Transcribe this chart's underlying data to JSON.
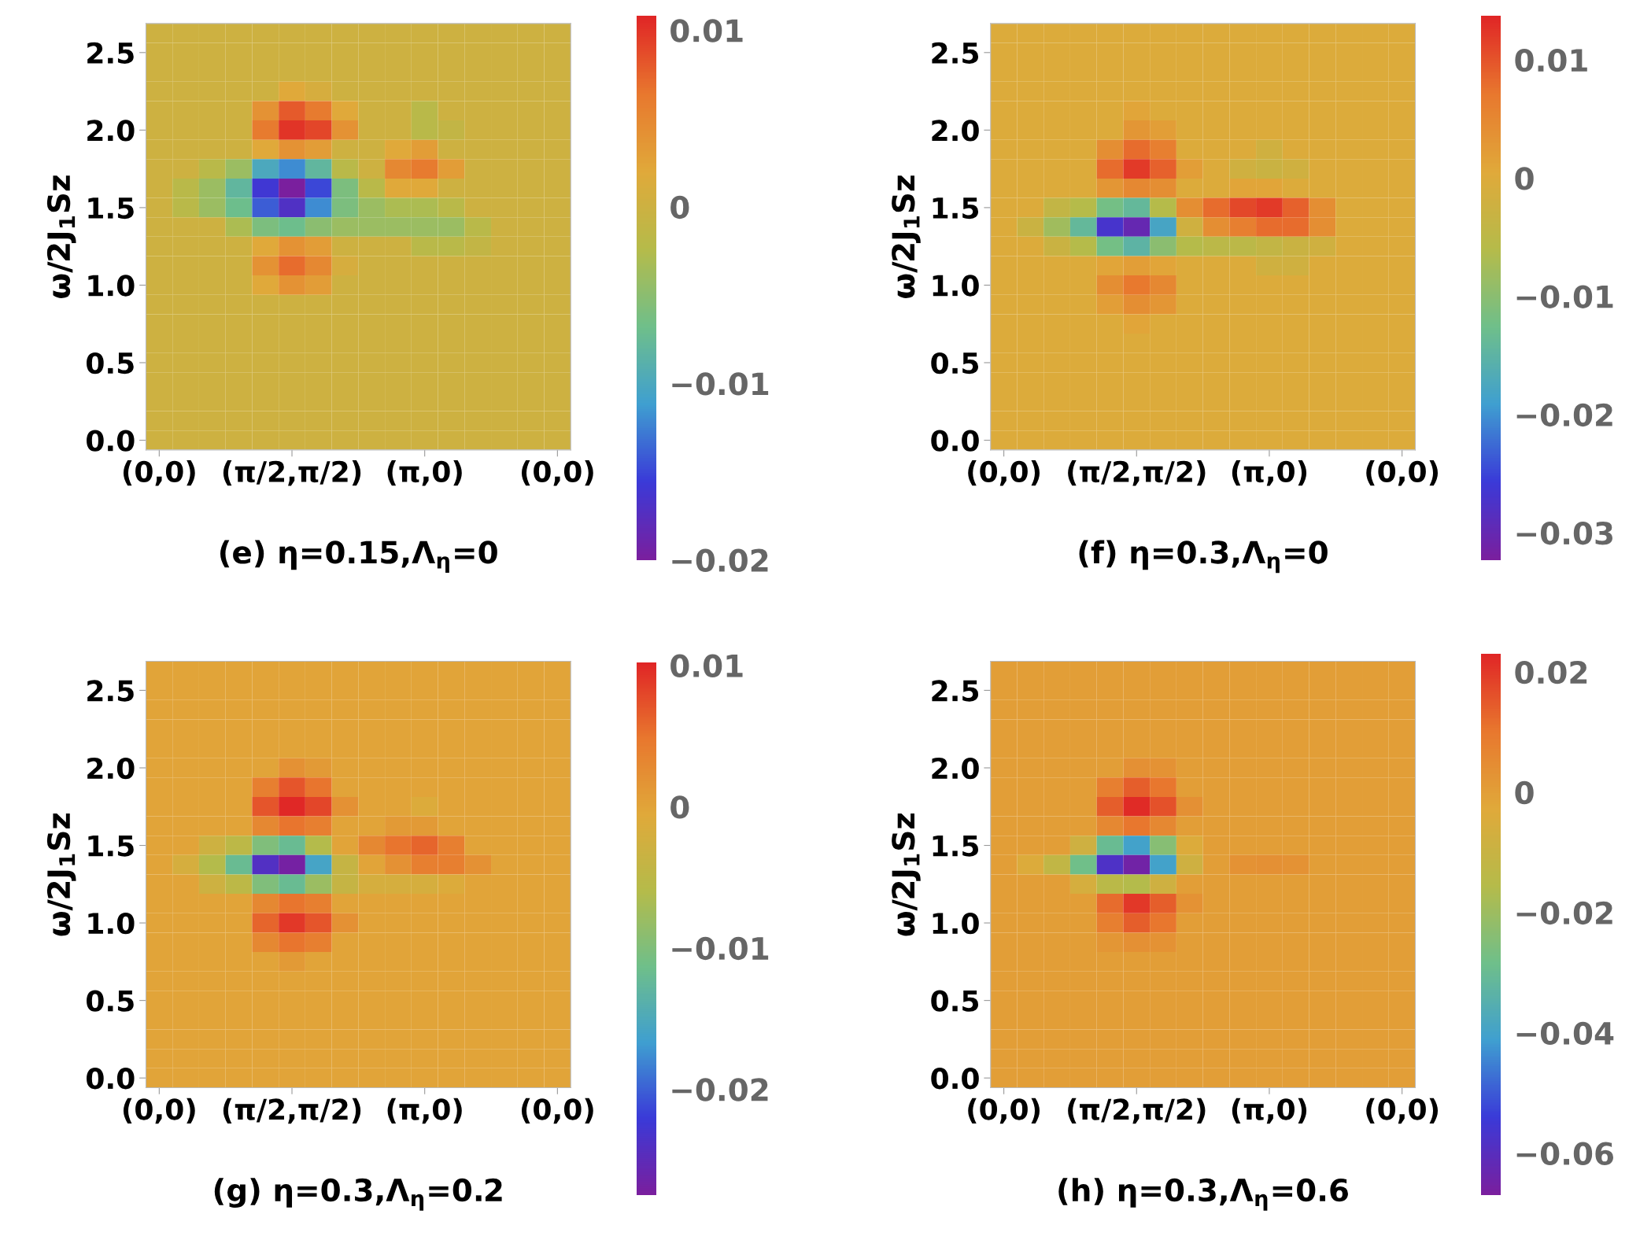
{
  "chart_data": [
    {
      "type": "heatmap",
      "title": "(e) η=0.15,Λ$_{η}$=0",
      "ylabel": "ω/2J$_{1}$Sz",
      "categories": [
        "(0,0)",
        null,
        null,
        null,
        null,
        "(π/2,π/2)",
        null,
        null,
        null,
        null,
        "(π,0)",
        null,
        null,
        null,
        null,
        "(0,0)"
      ],
      "y_categories": [
        null,
        "2.5",
        null,
        null,
        null,
        "2.0",
        null,
        null,
        null,
        "1.5",
        null,
        null,
        null,
        "1.0",
        null,
        null,
        null,
        "0.5",
        null,
        null,
        null,
        "0.0"
      ],
      "clim": [
        -0.02,
        0.0108
      ],
      "cticks": [
        0.01,
        0,
        {
          "value": -0.01,
          "label": "−0.01"
        },
        {
          "value": -0.02,
          "label": "−0.02"
        }
      ],
      "cells": [
        [
          0,
          0,
          0,
          0,
          0,
          0,
          0,
          0,
          0,
          0,
          0,
          0,
          0,
          0,
          0,
          0
        ],
        [
          0,
          0,
          0,
          0,
          0,
          0,
          0,
          0,
          0,
          0,
          0,
          0,
          0,
          0,
          0,
          0
        ],
        [
          0,
          0,
          0,
          0,
          0,
          0,
          0,
          0,
          0,
          0,
          0,
          0,
          0,
          0,
          0,
          0
        ],
        [
          0,
          0,
          0,
          0,
          0,
          0.002,
          0.001,
          0,
          0,
          0,
          0,
          0,
          0,
          0,
          0,
          0
        ],
        [
          0,
          0,
          0,
          0,
          0.004,
          0.008,
          0.006,
          0.002,
          0,
          0,
          -0.002,
          0,
          0,
          0,
          0,
          0
        ],
        [
          0,
          0,
          0,
          0,
          0.006,
          0.01,
          0.009,
          0.004,
          0,
          0,
          -0.002,
          -0.001,
          0,
          0,
          0,
          0
        ],
        [
          0,
          0,
          0,
          0,
          0.002,
          0.004,
          0.003,
          0,
          0,
          0.002,
          0.003,
          0,
          0,
          0,
          0,
          0
        ],
        [
          0,
          0,
          -0.002,
          -0.004,
          -0.01,
          -0.012,
          -0.008,
          -0.002,
          0,
          0.005,
          0.006,
          0.003,
          0,
          0,
          0,
          0
        ],
        [
          0,
          -0.002,
          -0.004,
          -0.008,
          -0.016,
          -0.02,
          -0.015,
          -0.006,
          -0.002,
          0.002,
          0.002,
          0,
          0,
          0,
          0,
          0
        ],
        [
          0,
          -0.002,
          -0.004,
          -0.007,
          -0.014,
          -0.017,
          -0.012,
          -0.006,
          -0.004,
          -0.003,
          -0.003,
          -0.002,
          0,
          0,
          0,
          0
        ],
        [
          0,
          0,
          0,
          -0.003,
          -0.006,
          -0.007,
          -0.005,
          -0.004,
          -0.004,
          -0.004,
          -0.004,
          -0.004,
          -0.002,
          0,
          0,
          0
        ],
        [
          0,
          0,
          0,
          0,
          0.002,
          0.004,
          0.003,
          0,
          0,
          0,
          -0.002,
          -0.002,
          -0.001,
          0,
          0,
          0
        ],
        [
          0,
          0,
          0,
          0,
          0.004,
          0.007,
          0.005,
          0.001,
          0,
          0,
          0,
          0,
          0,
          0,
          0,
          0
        ],
        [
          0,
          0,
          0,
          0,
          0.002,
          0.004,
          0.003,
          0,
          0,
          0,
          0,
          0,
          0,
          0,
          0,
          0
        ],
        [
          0,
          0,
          0,
          0,
          0,
          0,
          0,
          0,
          0,
          0,
          0,
          0,
          0,
          0,
          0,
          0
        ],
        [
          0,
          0,
          0,
          0,
          0,
          0,
          0,
          0,
          0,
          0,
          0,
          0,
          0,
          0,
          0,
          0
        ],
        [
          0,
          0,
          0,
          0,
          0,
          0,
          0,
          0,
          0,
          0,
          0,
          0,
          0,
          0,
          0,
          0
        ],
        [
          0,
          0,
          0,
          0,
          0,
          0,
          0,
          0,
          0,
          0,
          0,
          0,
          0,
          0,
          0,
          0
        ],
        [
          0,
          0,
          0,
          0,
          0,
          0,
          0,
          0,
          0,
          0,
          0,
          0,
          0,
          0,
          0,
          0
        ],
        [
          0,
          0,
          0,
          0,
          0,
          0,
          0,
          0,
          0,
          0,
          0,
          0,
          0,
          0,
          0,
          0
        ],
        [
          0,
          0,
          0,
          0,
          0,
          0,
          0,
          0,
          0,
          0,
          0,
          0,
          0,
          0,
          0,
          0
        ],
        [
          0,
          0,
          0,
          0,
          0,
          0,
          0,
          0,
          0,
          0,
          0,
          0,
          0,
          0,
          0,
          0
        ]
      ]
    },
    {
      "type": "heatmap",
      "title": "(f) η=0.3,Λ$_{η}$=0",
      "ylabel": "ω/2J$_{1}$Sz",
      "categories": [
        "(0,0)",
        null,
        null,
        null,
        null,
        "(π/2,π/2)",
        null,
        null,
        null,
        null,
        "(π,0)",
        null,
        null,
        null,
        null,
        "(0,0)"
      ],
      "y_categories": [
        null,
        "2.5",
        null,
        null,
        null,
        "2.0",
        null,
        null,
        null,
        "1.5",
        null,
        null,
        null,
        "1.0",
        null,
        null,
        null,
        "0.5",
        null,
        null,
        null,
        "0.0"
      ],
      "clim": [
        -0.0323,
        0.0137
      ],
      "cticks": [
        0.01,
        0,
        {
          "value": -0.01,
          "label": "−0.01"
        },
        {
          "value": -0.02,
          "label": "−0.02"
        },
        {
          "value": -0.03,
          "label": "−0.03"
        }
      ],
      "cells": [
        [
          0,
          0,
          0,
          0,
          0,
          0,
          0,
          0,
          0,
          0,
          0,
          0,
          0,
          0,
          0,
          0
        ],
        [
          0,
          0,
          0,
          0,
          0,
          0,
          0,
          0,
          0,
          0,
          0,
          0,
          0,
          0,
          0,
          0
        ],
        [
          0,
          0,
          0,
          0,
          0,
          0,
          0,
          0,
          0,
          0,
          0,
          0,
          0,
          0,
          0,
          0
        ],
        [
          0,
          0,
          0,
          0,
          0,
          0,
          0,
          0,
          0,
          0,
          0,
          0,
          0,
          0,
          0,
          0
        ],
        [
          0,
          0,
          0,
          0,
          0,
          0.001,
          0,
          0,
          0,
          0,
          0,
          0,
          0,
          0,
          0,
          0
        ],
        [
          0,
          0,
          0,
          0,
          0,
          0.003,
          0.002,
          0,
          0,
          0,
          0,
          0,
          0,
          0,
          0,
          0
        ],
        [
          0,
          0,
          0,
          0,
          0.004,
          0.008,
          0.006,
          0,
          0,
          0,
          -0.002,
          0,
          0,
          0,
          0,
          0
        ],
        [
          0,
          0,
          0,
          0,
          0.008,
          0.012,
          0.009,
          0.002,
          0,
          -0.002,
          -0.003,
          -0.002,
          0,
          0,
          0,
          0
        ],
        [
          0,
          0,
          0,
          0,
          0.003,
          0.005,
          0.004,
          0,
          0,
          0.001,
          0.001,
          0,
          0,
          0,
          0,
          0
        ],
        [
          0,
          0,
          -0.004,
          -0.006,
          -0.012,
          -0.014,
          -0.006,
          0.004,
          0.008,
          0.011,
          0.012,
          0.009,
          0.004,
          0,
          0,
          0
        ],
        [
          0,
          -0.003,
          -0.008,
          -0.014,
          -0.027,
          -0.03,
          -0.018,
          -0.002,
          0.004,
          0.006,
          0.008,
          0.008,
          0.004,
          0,
          0,
          0
        ],
        [
          0,
          0,
          -0.003,
          -0.006,
          -0.012,
          -0.015,
          -0.01,
          -0.006,
          -0.005,
          -0.005,
          -0.004,
          -0.003,
          -0.002,
          0,
          0,
          0
        ],
        [
          0,
          0,
          0,
          0,
          0.001,
          0.002,
          0.001,
          0,
          0,
          0,
          -0.002,
          -0.002,
          0,
          0,
          0,
          0
        ],
        [
          0,
          0,
          0,
          0,
          0.004,
          0.007,
          0.005,
          0,
          0,
          0,
          0,
          0,
          0,
          0,
          0,
          0
        ],
        [
          0,
          0,
          0,
          0,
          0.002,
          0.004,
          0.003,
          0,
          0,
          0,
          0,
          0,
          0,
          0,
          0,
          0
        ],
        [
          0,
          0,
          0,
          0,
          0,
          0.001,
          0,
          0,
          0,
          0,
          0,
          0,
          0,
          0,
          0,
          0
        ],
        [
          0,
          0,
          0,
          0,
          0,
          0,
          0,
          0,
          0,
          0,
          0,
          0,
          0,
          0,
          0,
          0
        ],
        [
          0,
          0,
          0,
          0,
          0,
          0,
          0,
          0,
          0,
          0,
          0,
          0,
          0,
          0,
          0,
          0
        ],
        [
          0,
          0,
          0,
          0,
          0,
          0,
          0,
          0,
          0,
          0,
          0,
          0,
          0,
          0,
          0,
          0
        ],
        [
          0,
          0,
          0,
          0,
          0,
          0,
          0,
          0,
          0,
          0,
          0,
          0,
          0,
          0,
          0,
          0
        ],
        [
          0,
          0,
          0,
          0,
          0,
          0,
          0,
          0,
          0,
          0,
          0,
          0,
          0,
          0,
          0,
          0
        ],
        [
          0,
          0,
          0,
          0,
          0,
          0,
          0,
          0,
          0,
          0,
          0,
          0,
          0,
          0,
          0,
          0
        ]
      ]
    },
    {
      "type": "heatmap",
      "title": "(g) η=0.3,Λ$_{η}$=0.2",
      "ylabel": "ω/2J$_{1}$Sz",
      "categories": [
        "(0,0)",
        null,
        null,
        null,
        null,
        "(π/2,π/2)",
        null,
        null,
        null,
        null,
        "(π,0)",
        null,
        null,
        null,
        null,
        "(0,0)"
      ],
      "y_categories": [
        null,
        "2.5",
        null,
        null,
        null,
        "2.0",
        null,
        null,
        null,
        "1.5",
        null,
        null,
        null,
        "1.0",
        null,
        null,
        null,
        "0.5",
        null,
        null,
        null,
        "0.0"
      ],
      "clim": [
        -0.0275,
        0.0102
      ],
      "cticks": [
        0.01,
        0,
        {
          "value": -0.01,
          "label": "−0.01"
        },
        {
          "value": -0.02,
          "label": "−0.02"
        }
      ],
      "cells": [
        [
          0,
          0,
          0,
          0,
          0,
          0,
          0,
          0,
          0,
          0,
          0,
          0,
          0,
          0,
          0,
          0
        ],
        [
          0,
          0,
          0,
          0,
          0,
          0,
          0,
          0,
          0,
          0,
          0,
          0,
          0,
          0,
          0,
          0
        ],
        [
          0,
          0,
          0,
          0,
          0,
          0,
          0,
          0,
          0,
          0,
          0,
          0,
          0,
          0,
          0,
          0
        ],
        [
          0,
          0,
          0,
          0,
          0,
          0,
          0,
          0,
          0,
          0,
          0,
          0,
          0,
          0,
          0,
          0
        ],
        [
          0,
          0,
          0,
          0,
          0,
          0,
          0,
          0,
          0,
          0,
          0,
          0,
          0,
          0,
          0,
          0
        ],
        [
          0,
          0,
          0,
          0,
          0,
          0.002,
          0.001,
          0,
          0,
          0,
          0,
          0,
          0,
          0,
          0,
          0
        ],
        [
          0,
          0,
          0,
          0,
          0.004,
          0.007,
          0.005,
          0,
          0,
          0,
          0,
          0,
          0,
          0,
          0,
          0
        ],
        [
          0,
          0,
          0,
          0,
          0.007,
          0.01,
          0.008,
          0.002,
          0,
          0,
          -0.001,
          0,
          0,
          0,
          0,
          0
        ],
        [
          0,
          0,
          0,
          0,
          0.003,
          0.005,
          0.004,
          0,
          0,
          0.001,
          0.001,
          0,
          0,
          0,
          0,
          0
        ],
        [
          0,
          0,
          -0.003,
          -0.005,
          -0.01,
          -0.012,
          -0.006,
          0,
          0.003,
          0.005,
          0.006,
          0.004,
          0,
          0,
          0,
          0
        ],
        [
          0,
          -0.002,
          -0.006,
          -0.012,
          -0.024,
          -0.027,
          -0.016,
          -0.004,
          0,
          0.002,
          0.004,
          0.004,
          0.002,
          0,
          0,
          0
        ],
        [
          0,
          0,
          -0.003,
          -0.005,
          -0.01,
          -0.012,
          -0.008,
          -0.004,
          -0.002,
          -0.002,
          -0.002,
          -0.001,
          0,
          0,
          0,
          0
        ],
        [
          0,
          0,
          0,
          0,
          0.003,
          0.005,
          0.004,
          0,
          0,
          0,
          0,
          0,
          0,
          0,
          0,
          0
        ],
        [
          0,
          0,
          0,
          0,
          0.006,
          0.009,
          0.007,
          0.002,
          0,
          0,
          0,
          0,
          0,
          0,
          0,
          0
        ],
        [
          0,
          0,
          0,
          0,
          0.003,
          0.005,
          0.004,
          0,
          0,
          0,
          0,
          0,
          0,
          0,
          0,
          0
        ],
        [
          0,
          0,
          0,
          0,
          0,
          0.001,
          0,
          0,
          0,
          0,
          0,
          0,
          0,
          0,
          0,
          0
        ],
        [
          0,
          0,
          0,
          0,
          0,
          0,
          0,
          0,
          0,
          0,
          0,
          0,
          0,
          0,
          0,
          0
        ],
        [
          0,
          0,
          0,
          0,
          0,
          0,
          0,
          0,
          0,
          0,
          0,
          0,
          0,
          0,
          0,
          0
        ],
        [
          0,
          0,
          0,
          0,
          0,
          0,
          0,
          0,
          0,
          0,
          0,
          0,
          0,
          0,
          0,
          0
        ],
        [
          0,
          0,
          0,
          0,
          0,
          0,
          0,
          0,
          0,
          0,
          0,
          0,
          0,
          0,
          0,
          0
        ],
        [
          0,
          0,
          0,
          0,
          0,
          0,
          0,
          0,
          0,
          0,
          0,
          0,
          0,
          0,
          0,
          0
        ],
        [
          0,
          0,
          0,
          0,
          0,
          0,
          0,
          0,
          0,
          0,
          0,
          0,
          0,
          0,
          0,
          0
        ]
      ]
    },
    {
      "type": "heatmap",
      "title": "(h) η=0.3,Λ$_{η}$=0.6",
      "ylabel": "ω/2J$_{1}$Sz",
      "categories": [
        "(0,0)",
        null,
        null,
        null,
        null,
        "(π/2,π/2)",
        null,
        null,
        null,
        null,
        "(π,0)",
        null,
        null,
        null,
        null,
        "(0,0)"
      ],
      "y_categories": [
        null,
        "2.5",
        null,
        null,
        null,
        "2.0",
        null,
        null,
        null,
        "1.5",
        null,
        null,
        null,
        "1.0",
        null,
        null,
        null,
        "0.5",
        null,
        null,
        null,
        "0.0"
      ],
      "clim": [
        -0.067,
        0.023
      ],
      "cticks": [
        0.02,
        0,
        {
          "value": -0.02,
          "label": "−0.02"
        },
        {
          "value": -0.04,
          "label": "−0.04"
        },
        {
          "value": -0.06,
          "label": "−0.06"
        }
      ],
      "cells": [
        [
          0,
          0,
          0,
          0,
          0,
          0,
          0,
          0,
          0,
          0,
          0,
          0,
          0,
          0,
          0,
          0
        ],
        [
          0,
          0,
          0,
          0,
          0,
          0,
          0,
          0,
          0,
          0,
          0,
          0,
          0,
          0,
          0,
          0
        ],
        [
          0,
          0,
          0,
          0,
          0,
          0,
          0,
          0,
          0,
          0,
          0,
          0,
          0,
          0,
          0,
          0
        ],
        [
          0,
          0,
          0,
          0,
          0,
          0,
          0,
          0,
          0,
          0,
          0,
          0,
          0,
          0,
          0,
          0
        ],
        [
          0,
          0,
          0,
          0,
          0,
          0,
          0,
          0,
          0,
          0,
          0,
          0,
          0,
          0,
          0,
          0
        ],
        [
          0,
          0,
          0,
          0,
          0,
          0.004,
          0.003,
          0,
          0,
          0,
          0,
          0,
          0,
          0,
          0,
          0
        ],
        [
          0,
          0,
          0,
          0,
          0.008,
          0.014,
          0.01,
          0,
          0,
          0,
          0,
          0,
          0,
          0,
          0,
          0
        ],
        [
          0,
          0,
          0,
          0,
          0.014,
          0.022,
          0.016,
          0.004,
          0,
          0,
          0,
          0,
          0,
          0,
          0,
          0
        ],
        [
          0,
          0,
          0,
          0,
          0.006,
          0.01,
          0.006,
          0,
          0,
          0,
          0,
          0,
          0,
          0,
          0,
          0
        ],
        [
          0,
          0,
          0,
          -0.008,
          -0.03,
          -0.04,
          -0.024,
          -0.004,
          0,
          0,
          0,
          0,
          0,
          0,
          0,
          0
        ],
        [
          0,
          -0.004,
          -0.012,
          -0.028,
          -0.058,
          -0.065,
          -0.04,
          -0.008,
          0,
          0.003,
          0.004,
          0.003,
          0,
          0,
          0,
          0
        ],
        [
          0,
          0,
          0,
          -0.006,
          -0.014,
          -0.016,
          -0.008,
          0,
          0,
          0,
          0,
          0,
          0,
          0,
          0,
          0
        ],
        [
          0,
          0,
          0,
          0,
          0.012,
          0.02,
          0.014,
          0.003,
          0,
          0,
          0,
          0,
          0,
          0,
          0,
          0
        ],
        [
          0,
          0,
          0,
          0,
          0.008,
          0.014,
          0.01,
          0,
          0,
          0,
          0,
          0,
          0,
          0,
          0,
          0
        ],
        [
          0,
          0,
          0,
          0,
          0.002,
          0.004,
          0.003,
          0,
          0,
          0,
          0,
          0,
          0,
          0,
          0,
          0
        ],
        [
          0,
          0,
          0,
          0,
          0,
          0,
          0,
          0,
          0,
          0,
          0,
          0,
          0,
          0,
          0,
          0
        ],
        [
          0,
          0,
          0,
          0,
          0,
          0,
          0,
          0,
          0,
          0,
          0,
          0,
          0,
          0,
          0,
          0
        ],
        [
          0,
          0,
          0,
          0,
          0,
          0,
          0,
          0,
          0,
          0,
          0,
          0,
          0,
          0,
          0,
          0
        ],
        [
          0,
          0,
          0,
          0,
          0,
          0,
          0,
          0,
          0,
          0,
          0,
          0,
          0,
          0,
          0,
          0
        ],
        [
          0,
          0,
          0,
          0,
          0,
          0,
          0,
          0,
          0,
          0,
          0,
          0,
          0,
          0,
          0,
          0
        ],
        [
          0,
          0,
          0,
          0,
          0,
          0,
          0,
          0,
          0,
          0,
          0,
          0,
          0,
          0,
          0,
          0
        ],
        [
          0,
          0,
          0,
          0,
          0,
          0,
          0,
          0,
          0,
          0,
          0,
          0,
          0,
          0,
          0,
          0
        ]
      ]
    }
  ]
}
